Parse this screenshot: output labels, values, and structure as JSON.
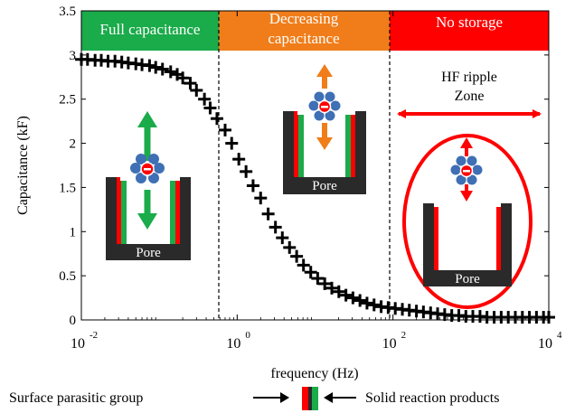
{
  "chart_data": {
    "type": "scatter",
    "xlabel": "frequency (Hz)",
    "ylabel": "Capacitance (kF)",
    "xscale": "log",
    "xlim": [
      0.01,
      10000
    ],
    "ylim": [
      0,
      3.5
    ],
    "grid": false,
    "x_ticks": [
      {
        "base": "10",
        "exp": "-2"
      },
      {
        "base": "10",
        "exp": "0"
      },
      {
        "base": "10",
        "exp": "2"
      },
      {
        "base": "10",
        "exp": "4"
      }
    ],
    "y_ticks": [
      "0",
      "0.5",
      "1",
      "1.5",
      "2",
      "2.5",
      "3",
      "3.5"
    ],
    "y_tick_values": [
      0,
      0.5,
      1,
      1.5,
      2,
      2.5,
      3,
      3.5
    ],
    "x_tick_values": [
      0.01,
      1,
      100,
      10000
    ],
    "series": [
      {
        "marker": "plus",
        "color": "#000000",
        "x": [
          0.01,
          0.012,
          0.015,
          0.018,
          0.022,
          0.027,
          0.033,
          0.04,
          0.05,
          0.06,
          0.075,
          0.09,
          0.11,
          0.14,
          0.17,
          0.2,
          0.25,
          0.3,
          0.38,
          0.45,
          0.55,
          0.7,
          0.85,
          1.05,
          1.3,
          1.6,
          2.0,
          2.5,
          3.1,
          3.8,
          4.7,
          5.8,
          7.1,
          8.8,
          10.8,
          13.3,
          16.4,
          20.2,
          24.9,
          30.6,
          37.7,
          46.4,
          57.2,
          70.5,
          86.8,
          107,
          132,
          162,
          200,
          246,
          304,
          374,
          461,
          568,
          700,
          862,
          1060,
          1310,
          1610,
          1990,
          2450,
          3020,
          3720,
          4580,
          5640,
          6950,
          8560,
          10000
        ],
        "y": [
          2.95,
          2.95,
          2.94,
          2.94,
          2.93,
          2.93,
          2.92,
          2.91,
          2.9,
          2.89,
          2.88,
          2.86,
          2.84,
          2.81,
          2.78,
          2.74,
          2.68,
          2.6,
          2.5,
          2.4,
          2.28,
          2.15,
          2.0,
          1.82,
          1.68,
          1.52,
          1.38,
          1.2,
          1.05,
          0.93,
          0.82,
          0.72,
          0.62,
          0.54,
          0.47,
          0.41,
          0.36,
          0.32,
          0.28,
          0.25,
          0.22,
          0.19,
          0.17,
          0.15,
          0.14,
          0.13,
          0.12,
          0.11,
          0.1,
          0.09,
          0.08,
          0.07,
          0.06,
          0.05,
          0.05,
          0.04,
          0.04,
          0.04,
          0.03,
          0.03,
          0.03,
          0.03,
          0.03,
          0.03,
          0.03,
          0.03,
          0.03,
          0.03
        ]
      }
    ],
    "boundaries": [
      0.6,
      100
    ],
    "zones": [
      {
        "label_lines": [
          "Full capacitance"
        ],
        "color": "#1aab4a",
        "x_from": 0.01,
        "x_to": 0.6
      },
      {
        "label_lines": [
          "Decreasing",
          "capacitance"
        ],
        "color": "#f07d1a",
        "x_from": 0.6,
        "x_to": 100
      },
      {
        "label_lines": [
          "No storage"
        ],
        "color": "#ff0000",
        "x_from": 100,
        "x_to": 10000
      }
    ],
    "annotations": {
      "hf_ripple": [
        "HF ripple",
        "Zone"
      ],
      "pore": "Pore"
    },
    "legend": {
      "left_text": "Surface parasitic group",
      "right_text": "Solid reaction products",
      "placement": "bottom"
    }
  },
  "colors": {
    "pore_wall": "#2a2a2a",
    "surface_group": "#ff0000",
    "reaction_product": "#1aab4a",
    "ion_core": "#ff0000",
    "solvent": "#3f6fb5",
    "green_arrow": "#1aab4a",
    "orange_arrow": "#f07d1a",
    "red_arrow": "#ff0000"
  }
}
